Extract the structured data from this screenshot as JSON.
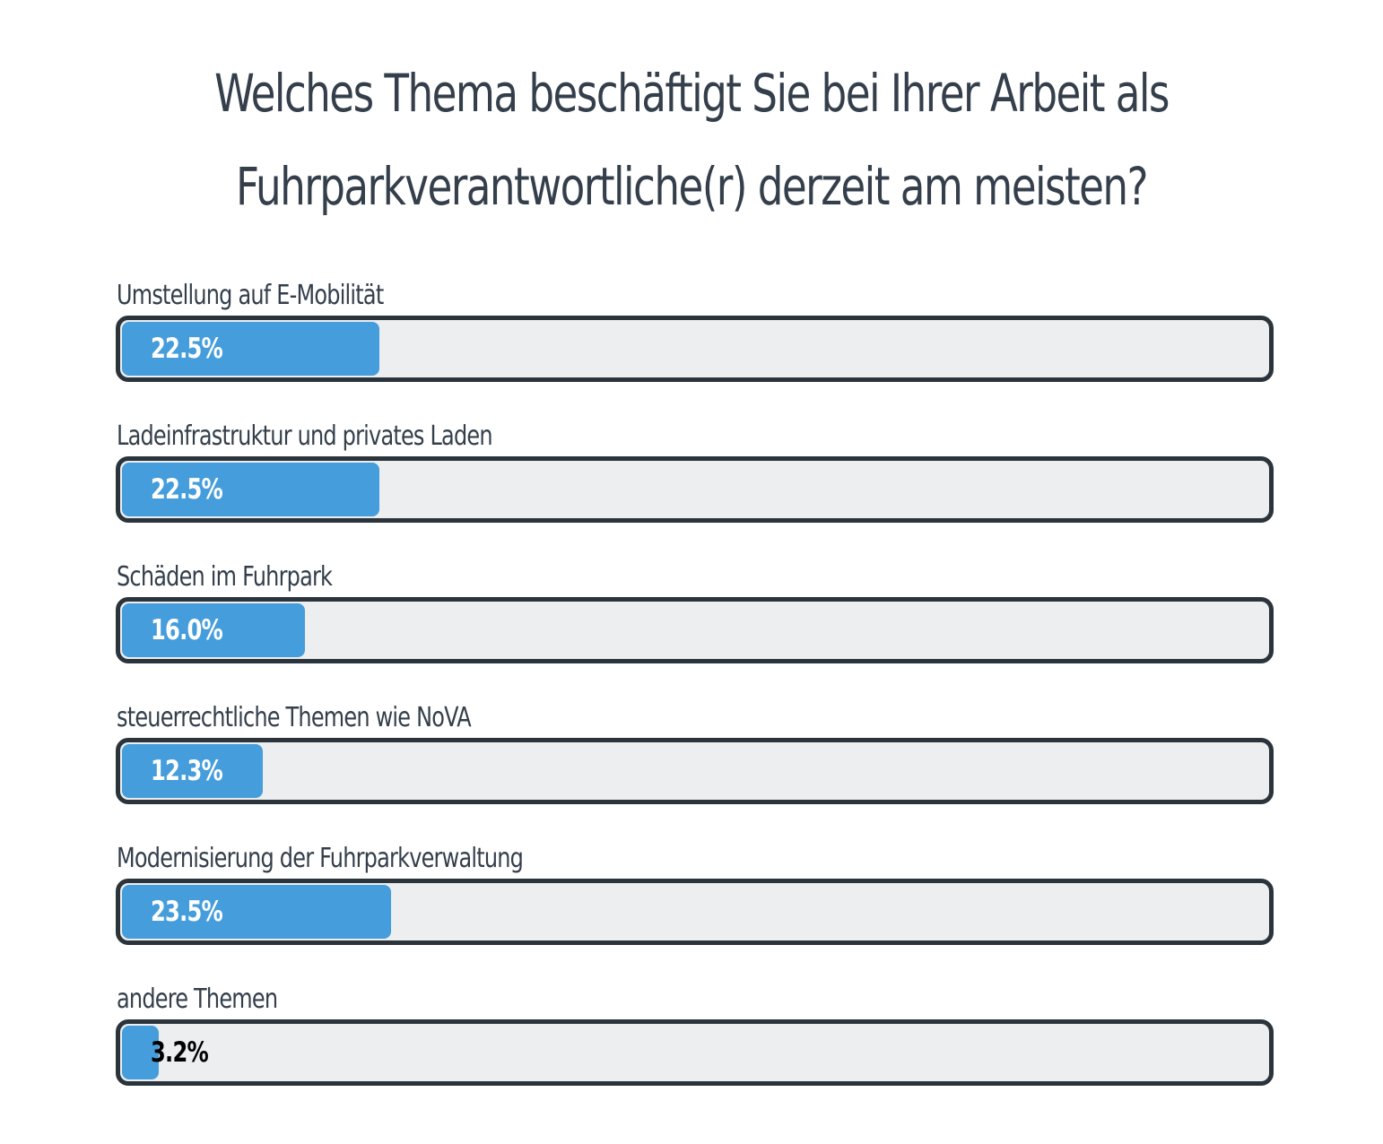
{
  "chart_data": {
    "type": "bar",
    "orientation": "horizontal",
    "title": "Welches Thema beschäftigt Sie bei Ihrer Arbeit als Fuhrparkverantwortliche(r) derzeit am meisten?",
    "unit": "%",
    "xlim": [
      0,
      100
    ],
    "grid": false,
    "categories": [
      "Umstellung auf E-Mobilität",
      "Ladeinfrastruktur und privates Laden",
      "Schäden im Fuhrpark",
      "steuerrechtliche Themen wie NoVA",
      "Modernisierung der Fuhrparkverwaltung",
      "andere Themen"
    ],
    "values": [
      22.5,
      22.5,
      16.0,
      12.3,
      23.5,
      3.2
    ],
    "value_labels": [
      "22.5%",
      "22.5%",
      "16.0%",
      "12.3%",
      "23.5%",
      "3.2%"
    ],
    "colors": {
      "fill": "#459ddc",
      "track": "#eceef0",
      "border": "#2b333b",
      "text": "#343f4b"
    }
  }
}
